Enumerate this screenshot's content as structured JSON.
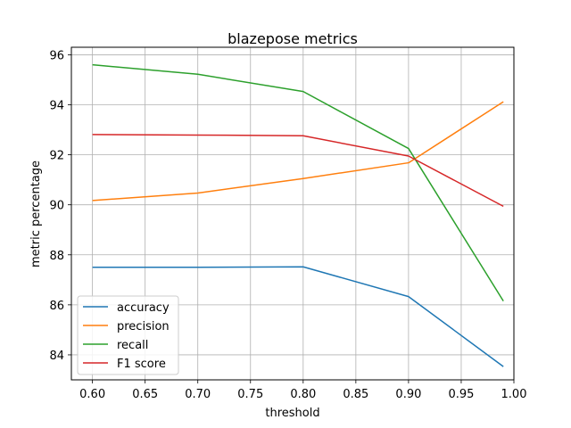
{
  "chart_data": {
    "type": "line",
    "title": "blazepose metrics",
    "xlabel": "threshold",
    "ylabel": "metric percentage",
    "xlim": [
      0.58,
      1.0
    ],
    "ylim": [
      83.0,
      96.3
    ],
    "xticks": [
      "0.60",
      "0.65",
      "0.70",
      "0.75",
      "0.80",
      "0.85",
      "0.90",
      "0.95",
      "1.00"
    ],
    "yticks": [
      "84",
      "86",
      "88",
      "90",
      "92",
      "94",
      "96"
    ],
    "grid": true,
    "legend_position": "lower-left",
    "x": [
      0.6,
      0.7,
      0.8,
      0.9,
      0.99
    ],
    "series": [
      {
        "name": "accuracy",
        "color": "#1f77b4",
        "values": [
          87.5,
          87.5,
          87.52,
          86.33,
          83.53
        ]
      },
      {
        "name": "precision",
        "color": "#ff7f0e",
        "values": [
          90.17,
          90.47,
          91.05,
          91.68,
          94.12
        ]
      },
      {
        "name": "recall",
        "color": "#2ca02c",
        "values": [
          95.6,
          95.22,
          94.53,
          92.25,
          86.15
        ]
      },
      {
        "name": "F1 score",
        "color": "#d62728",
        "values": [
          92.81,
          92.79,
          92.76,
          91.95,
          89.94
        ]
      }
    ]
  }
}
